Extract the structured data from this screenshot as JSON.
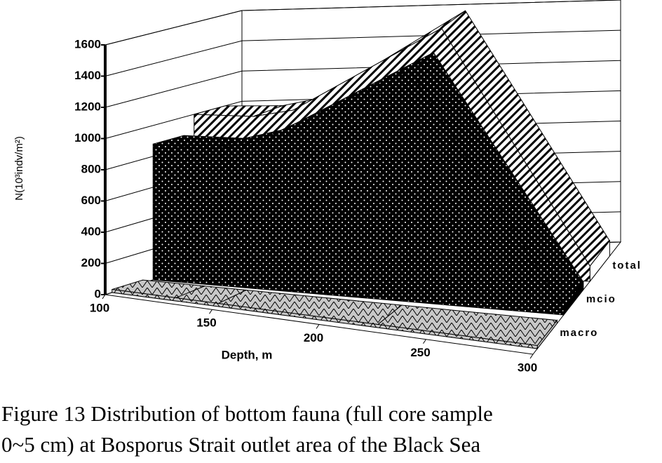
{
  "chart_data": {
    "type": "area3d",
    "y_label": "N(10³indv/m²)",
    "x_label": "Depth, m",
    "x": [
      100,
      130,
      150,
      225,
      300
    ],
    "series": [
      {
        "name": "macro",
        "color": "#c0c0c0",
        "values": [
          20,
          20,
          20,
          20,
          20
        ]
      },
      {
        "name": "mcio",
        "color": "#000000",
        "values": [
          880,
          880,
          950,
          1500,
          50
        ]
      },
      {
        "name": "total",
        "color": "#ffffff",
        "values": [
          1000,
          1000,
          1050,
          1620,
          100
        ]
      }
    ],
    "xlim": [
      100,
      300
    ],
    "xticks": [
      100,
      150,
      200,
      250,
      300
    ],
    "ylim": [
      0,
      1600
    ],
    "yticks": [
      0,
      200,
      400,
      600,
      800,
      1000,
      1200,
      1400,
      1600
    ],
    "grid": true
  },
  "caption": [
    "Figure 13 Distribution of bottom fauna (full core sample",
    "0~5 cm) at Bosporus Strait outlet area of the Black Sea"
  ]
}
